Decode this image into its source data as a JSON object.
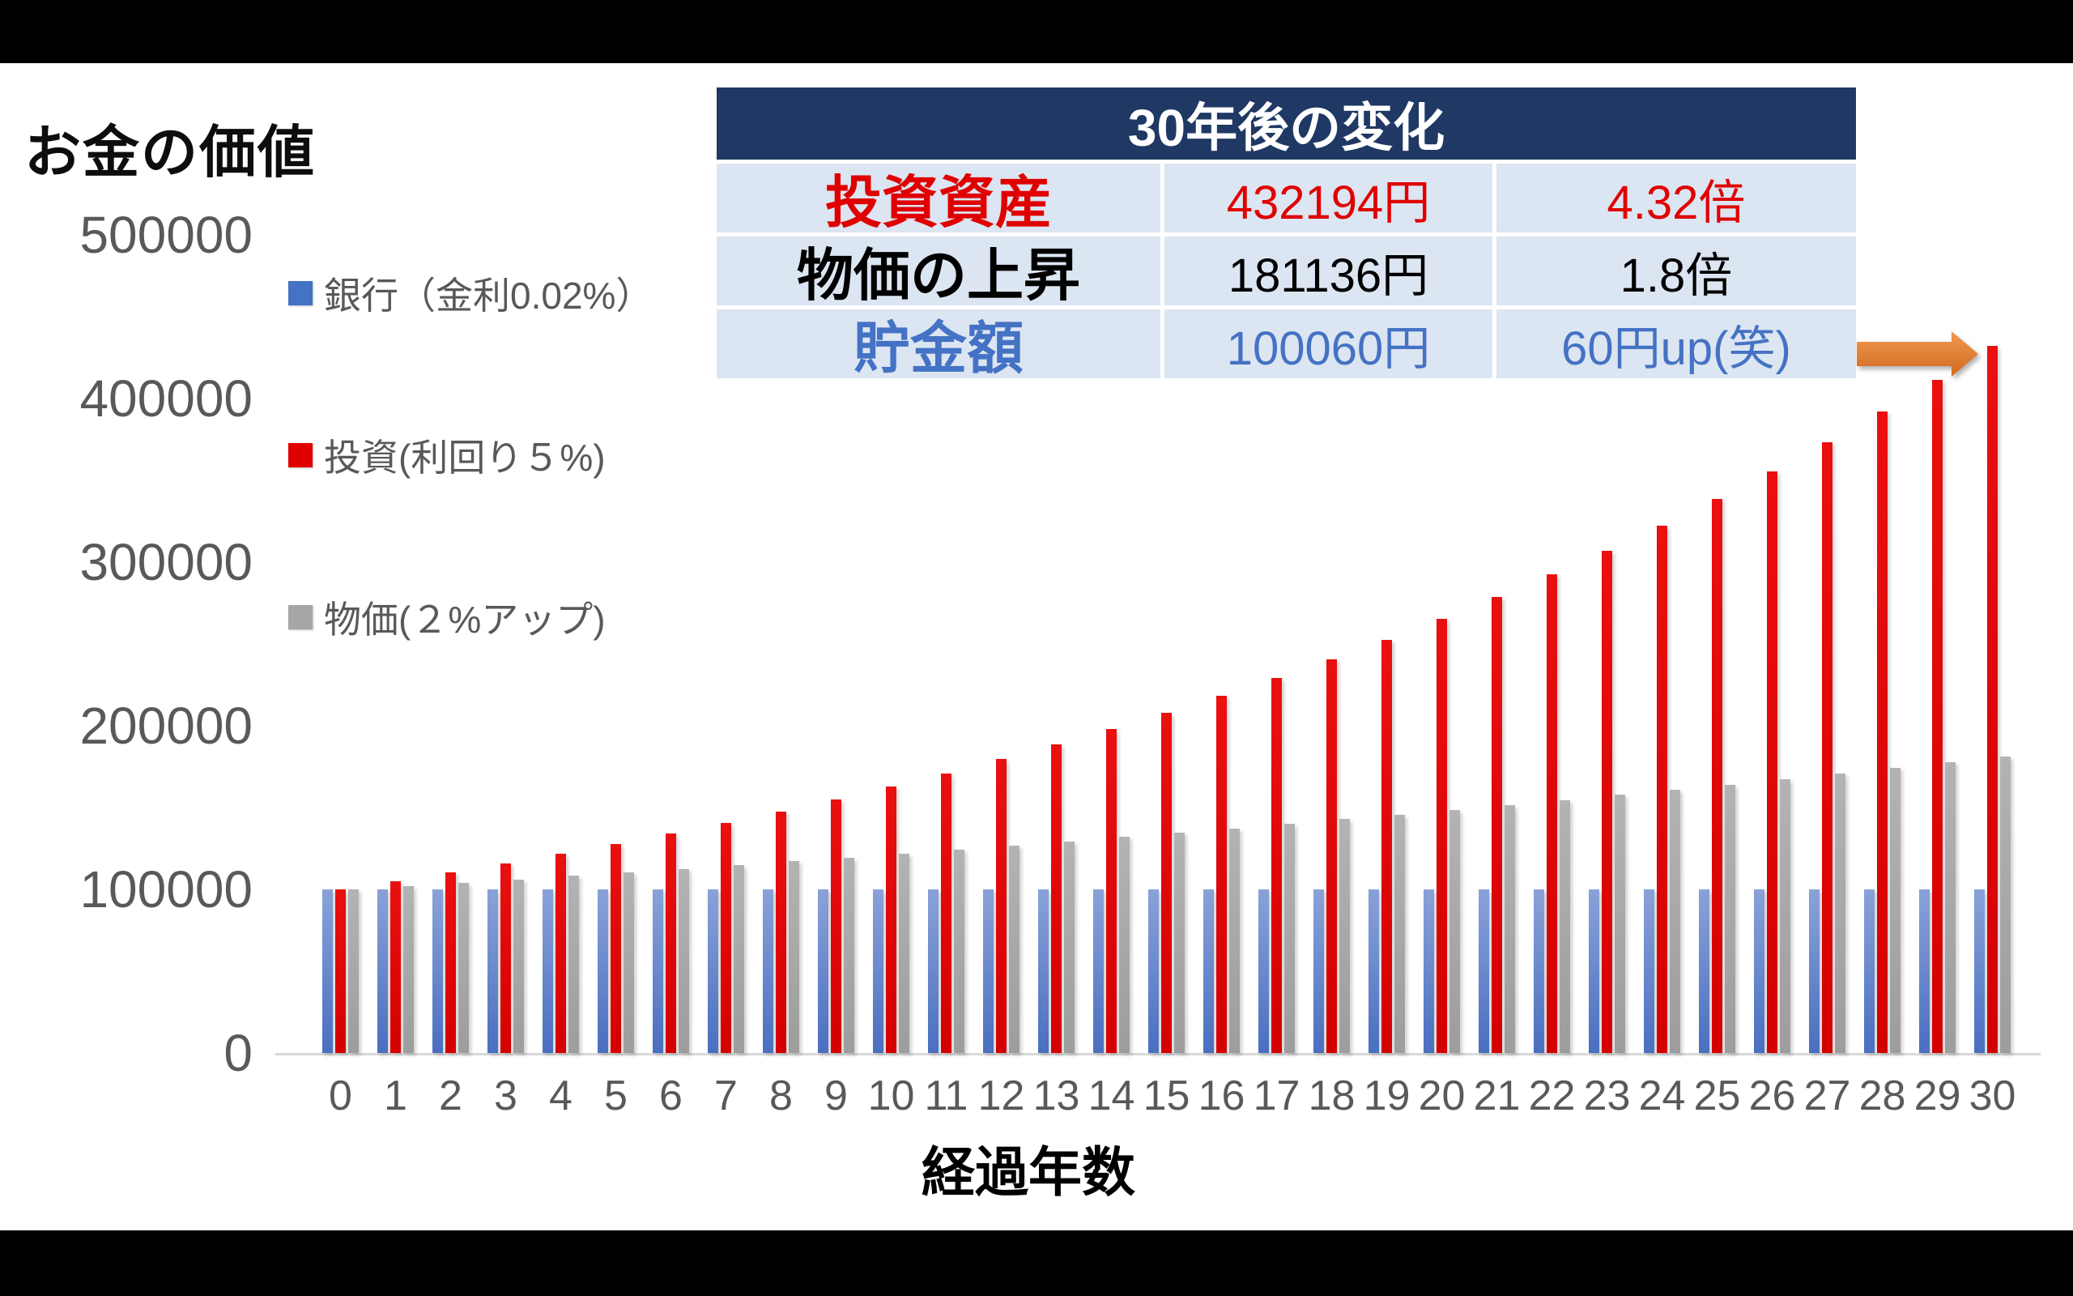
{
  "page": {
    "background": "#ffffff",
    "letterbox_color": "#000000"
  },
  "chart_title": "お金の価値",
  "x_axis_title": "経過年数",
  "legend": {
    "items": [
      {
        "label": "銀行（金利0.02%）",
        "color": "#4472c4"
      },
      {
        "label": "投資(利回り５%)",
        "color": "#e00000"
      },
      {
        "label": "物価(２%アップ)",
        "color": "#a6a6a6"
      }
    ]
  },
  "summary_table": {
    "title": "30年後の変化",
    "header_bg": "#1f3864",
    "header_text_color": "#ffffff",
    "row_bg": "#dce5f2",
    "rows": [
      {
        "label": "投資資産",
        "amount": "432194円",
        "multiple": "4.32倍",
        "text_color": "#e00000"
      },
      {
        "label": "物価の上昇",
        "amount": "181136円",
        "multiple": "1.8倍",
        "text_color": "#000000"
      },
      {
        "label": "貯金額",
        "amount": "100060円",
        "multiple": "60円up(笑)",
        "text_color": "#4472c4"
      }
    ]
  },
  "annotation_arrow": {
    "color_light": "#f09a52",
    "color_dark": "#cf6a1e"
  },
  "chart_data": {
    "type": "bar",
    "title": "お金の価値",
    "xlabel": "経過年数",
    "ylabel": "",
    "ylim": [
      0,
      500000
    ],
    "yticks": [
      500000,
      400000,
      300000,
      200000,
      100000,
      0
    ],
    "grid": false,
    "legend_position": "left",
    "x": [
      0,
      1,
      2,
      3,
      4,
      5,
      6,
      7,
      8,
      9,
      10,
      11,
      12,
      13,
      14,
      15,
      16,
      17,
      18,
      19,
      20,
      21,
      22,
      23,
      24,
      25,
      26,
      27,
      28,
      29,
      30
    ],
    "series": [
      {
        "name": "銀行（金利0.02%）",
        "color": "#4472c4",
        "values": [
          100000,
          100002,
          100004,
          100006,
          100008,
          100010,
          100012,
          100014,
          100016,
          100018,
          100020,
          100022,
          100024,
          100026,
          100028,
          100030,
          100032,
          100034,
          100036,
          100038,
          100040,
          100042,
          100044,
          100046,
          100048,
          100050,
          100052,
          100054,
          100056,
          100058,
          100060
        ]
      },
      {
        "name": "投資(利回り５%)",
        "color": "#e00000",
        "values": [
          100000,
          105000,
          110250,
          115763,
          121551,
          127628,
          134010,
          140710,
          147746,
          155133,
          162889,
          171034,
          179586,
          188565,
          197993,
          207893,
          218287,
          229202,
          240662,
          252695,
          265330,
          278596,
          292526,
          307152,
          322510,
          338635,
          355567,
          373346,
          392013,
          411614,
          432194
        ]
      },
      {
        "name": "物価(２%アップ)",
        "color": "#a6a6a6",
        "values": [
          100000,
          102000,
          104040,
          106121,
          108243,
          110408,
          112616,
          114869,
          117166,
          119509,
          121899,
          124337,
          126824,
          129361,
          131948,
          134587,
          137279,
          140024,
          142825,
          145681,
          148595,
          151567,
          154598,
          157690,
          160844,
          164061,
          167342,
          170689,
          174102,
          177584,
          181136
        ]
      }
    ]
  }
}
